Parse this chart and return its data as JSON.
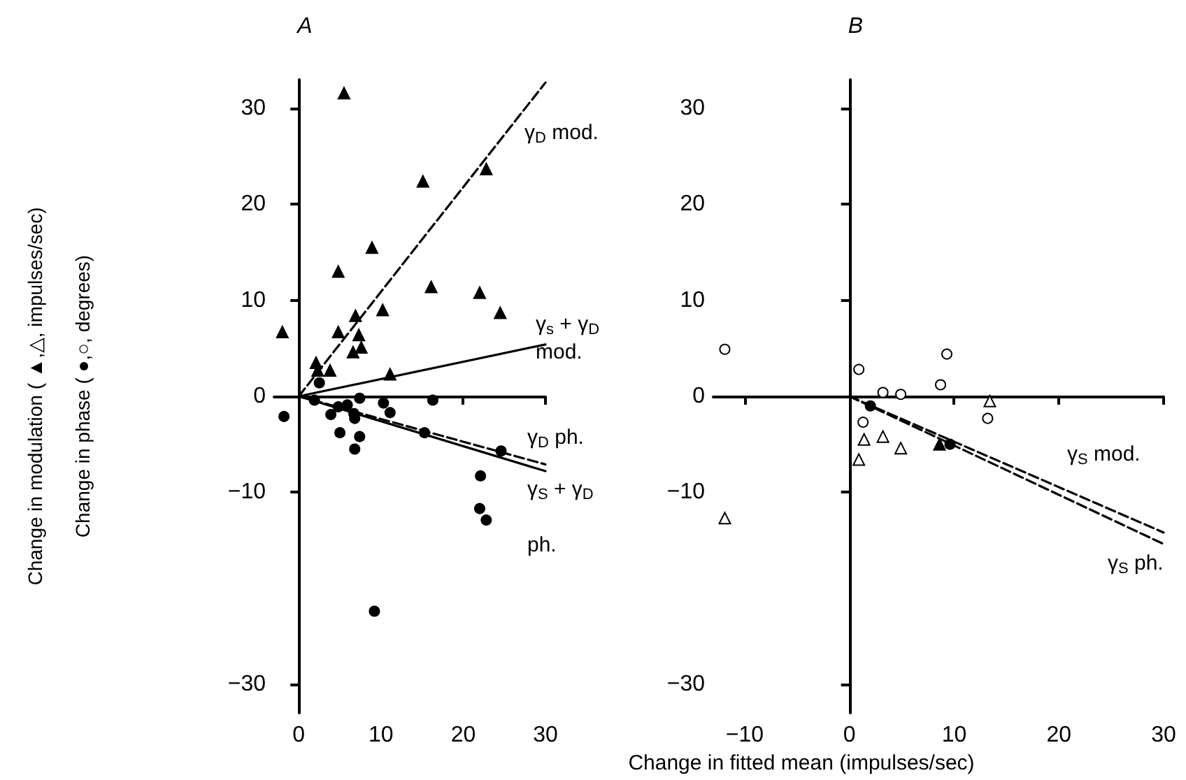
{
  "chart_data": [
    {
      "type": "scatter",
      "title": "A",
      "ylabel": "Change in modulation ( ▲,△, impulses/sec)\nChange in phase ( ●,○, degrees)",
      "xlim": [
        -3,
        30
      ],
      "xticks": [
        0,
        10,
        20,
        30
      ],
      "ylim": [
        -33,
        33
      ],
      "yticks": [
        -30,
        -10,
        0,
        10,
        20,
        30
      ],
      "annotations": [
        "γ$_{D}$ mod.",
        "γ$_{s}$ + γ$_{D}$\nmod.",
        "γ$_{D}$ ph.",
        "γ$_{S}$ + γ$_{D}$\n\nph."
      ],
      "series": [
        {
          "marker": "triangle",
          "color": "#000000",
          "x": [
            -2.0,
            5.5,
            15.1,
            22.8,
            8.9,
            4.8,
            16.1,
            22.0,
            24.5,
            10.2,
            6.9,
            4.8,
            7.3,
            7.6,
            6.6,
            2.1,
            3.8,
            2.3,
            11.1
          ],
          "values": [
            6.7,
            31.6,
            22.4,
            23.7,
            15.5,
            13.0,
            11.4,
            10.8,
            8.7,
            9.0,
            8.4,
            6.7,
            6.4,
            5.1,
            4.6,
            3.5,
            2.7,
            2.7,
            2.3
          ]
        },
        {
          "marker": "circle",
          "color": "#000000",
          "x": [
            -1.8,
            2.5,
            3.9,
            5.0,
            4.8,
            5.9,
            6.7,
            6.8,
            7.4,
            6.8,
            7.4,
            10.3,
            11.1,
            16.3,
            15.3,
            24.6,
            22.1,
            22.0,
            22.8,
            9.2,
            1.9
          ],
          "values": [
            -2.1,
            1.4,
            -1.9,
            -3.8,
            -1.1,
            -0.9,
            -1.8,
            -2.3,
            -0.2,
            -5.5,
            -4.2,
            -0.7,
            -1.7,
            -0.4,
            -3.8,
            -5.7,
            -8.3,
            -11.7,
            -12.9,
            -22.4,
            -0.4
          ]
        },
        {
          "type": "line",
          "line_style": "dashed",
          "color": "#000000",
          "x": [
            0,
            30
          ],
          "values": [
            0,
            32.7
          ]
        },
        {
          "type": "line",
          "line_style": "solid",
          "color": "#000000",
          "x": [
            0,
            30
          ],
          "values": [
            0,
            5.4
          ]
        },
        {
          "type": "line",
          "line_style": "dashed",
          "color": "#000000",
          "x": [
            0,
            30
          ],
          "values": [
            0,
            -7.1
          ]
        },
        {
          "type": "line",
          "line_style": "solid",
          "color": "#000000",
          "x": [
            0,
            30
          ],
          "values": [
            0,
            -7.8
          ]
        }
      ]
    },
    {
      "type": "scatter",
      "title": "B",
      "xlabel": "Change in fitted mean (impulses/sec)",
      "xlim": [
        -13,
        30
      ],
      "xticks": [
        -10,
        0,
        10,
        20,
        30
      ],
      "ylim": [
        -33,
        33
      ],
      "yticks": [
        -30,
        -10,
        0,
        10,
        20,
        30
      ],
      "annotations": [
        "γ$_{S}$ mod.",
        "γ$_{S}$ ph."
      ],
      "series": [
        {
          "marker": "circle",
          "color": "#ffffff",
          "x": [
            -11.9,
            9.3,
            0.9,
            8.7,
            3.2,
            4.9,
            1.3,
            13.2
          ],
          "values": [
            4.9,
            4.4,
            2.8,
            1.2,
            0.4,
            0.2,
            -2.7,
            -2.3
          ]
        },
        {
          "marker": "triangle",
          "color": "#ffffff",
          "x": [
            -11.9,
            0.9,
            1.4,
            3.2,
            4.9,
            13.4
          ],
          "values": [
            -12.7,
            -6.6,
            -4.5,
            -4.2,
            -5.4,
            -0.5
          ]
        },
        {
          "marker": "triangle",
          "color": "#000000",
          "x": [
            8.6
          ],
          "values": [
            -5.0
          ]
        },
        {
          "marker": "circle",
          "color": "#000000",
          "x": [
            2.0,
            9.6
          ],
          "values": [
            -1.0,
            -5.0
          ]
        },
        {
          "type": "line",
          "line_style": "dashed",
          "color": "#000000",
          "x": [
            0,
            30
          ],
          "values": [
            0,
            -14.2
          ]
        },
        {
          "type": "line",
          "line_style": "dashed",
          "color": "#000000",
          "x": [
            0,
            30
          ],
          "values": [
            0,
            -15.4
          ]
        }
      ]
    }
  ]
}
